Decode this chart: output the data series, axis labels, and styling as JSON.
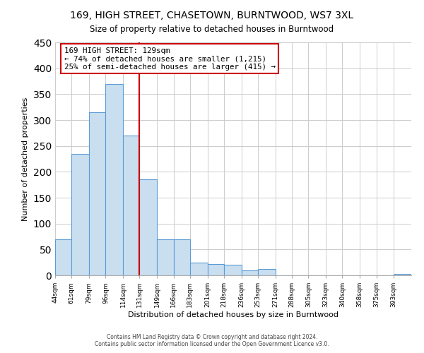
{
  "title": "169, HIGH STREET, CHASETOWN, BURNTWOOD, WS7 3XL",
  "subtitle": "Size of property relative to detached houses in Burntwood",
  "xlabel": "Distribution of detached houses by size in Burntwood",
  "ylabel": "Number of detached properties",
  "footer_line1": "Contains HM Land Registry data © Crown copyright and database right 2024.",
  "footer_line2": "Contains public sector information licensed under the Open Government Licence v3.0.",
  "bar_edges": [
    44,
    61,
    79,
    96,
    114,
    131,
    149,
    166,
    183,
    201,
    218,
    236,
    253,
    271,
    288,
    305,
    323,
    340,
    358,
    375,
    393
  ],
  "bar_heights": [
    70,
    235,
    315,
    370,
    270,
    185,
    70,
    70,
    25,
    22,
    20,
    10,
    12,
    0,
    0,
    0,
    0,
    0,
    0,
    0,
    3
  ],
  "bar_labels": [
    "44sqm",
    "61sqm",
    "79sqm",
    "96sqm",
    "114sqm",
    "131sqm",
    "149sqm",
    "166sqm",
    "183sqm",
    "201sqm",
    "218sqm",
    "236sqm",
    "253sqm",
    "271sqm",
    "288sqm",
    "305sqm",
    "323sqm",
    "340sqm",
    "358sqm",
    "375sqm",
    "393sqm"
  ],
  "bar_color": "#c9dff0",
  "bar_edge_color": "#5b9bd5",
  "red_line_x": 131,
  "ylim": [
    0,
    450
  ],
  "annotation_title": "169 HIGH STREET: 129sqm",
  "annotation_line2": "← 74% of detached houses are smaller (1,215)",
  "annotation_line3": "25% of semi-detached houses are larger (415) →",
  "annotation_box_color": "#ffffff",
  "annotation_box_edge_color": "#cc0000",
  "grid_color": "#cccccc",
  "background_color": "#ffffff"
}
